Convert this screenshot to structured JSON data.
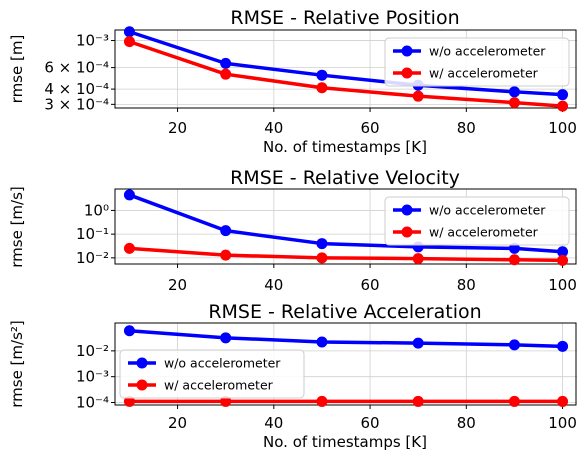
{
  "chart_data": [
    {
      "type": "line",
      "title": "RMSE - Relative Position",
      "xlabel": "No. of timestamps [K]",
      "ylabel": "rmse [m]",
      "yscale": "log",
      "xlim": [
        7,
        103
      ],
      "ylim": [
        0.00028,
        0.00122
      ],
      "grid": true,
      "legend_placement": "top-right",
      "x_ticks": [
        20,
        40,
        60,
        80,
        100
      ],
      "x_tick_labels": [
        "20",
        "40",
        "60",
        "80",
        "100"
      ],
      "y_ticks": [
        0.001,
        0.0006,
        0.0004,
        0.0003
      ],
      "y_tick_labels": [
        "10⁻³",
        "6 × 10⁻⁴",
        "4 × 10⁻⁴",
        "3 × 10⁻⁴"
      ],
      "x": [
        10,
        30,
        50,
        70,
        90,
        100
      ],
      "series": [
        {
          "name": "w/o accelerometer",
          "color": "#0000ff",
          "values": [
            0.00118,
            0.00065,
            0.00052,
            0.00043,
            0.00038,
            0.00036
          ]
        },
        {
          "name": "w/ accelerometer",
          "color": "#ff0000",
          "values": [
            0.00098,
            0.00053,
            0.00041,
            0.00035,
            0.00031,
            0.00029
          ]
        }
      ]
    },
    {
      "type": "line",
      "title": "RMSE - Relative Velocity",
      "xlabel": "",
      "ylabel": "rmse [m/s]",
      "yscale": "log",
      "xlim": [
        7,
        103
      ],
      "ylim": [
        0.0055,
        8
      ],
      "grid": true,
      "legend_placement": "top-right",
      "x_ticks": [
        20,
        40,
        60,
        80,
        100
      ],
      "x_tick_labels": [
        "20",
        "40",
        "60",
        "80",
        "100"
      ],
      "y_ticks": [
        1,
        0.1,
        0.01
      ],
      "y_tick_labels": [
        "10⁰",
        "10⁻¹",
        "10⁻²"
      ],
      "x": [
        10,
        30,
        50,
        70,
        90,
        100
      ],
      "series": [
        {
          "name": "w/o accelerometer",
          "color": "#0000ff",
          "values": [
            4.5,
            0.14,
            0.04,
            0.029,
            0.025,
            0.018
          ]
        },
        {
          "name": "w/ accelerometer",
          "color": "#ff0000",
          "values": [
            0.025,
            0.013,
            0.01,
            0.0093,
            0.0083,
            0.0078
          ]
        }
      ]
    },
    {
      "type": "line",
      "title": "RMSE - Relative Acceleration",
      "xlabel": "No. of timestamps [K]",
      "ylabel": "rmse [m/s²]",
      "yscale": "log",
      "xlim": [
        7,
        103
      ],
      "ylim": [
        8e-05,
        0.12
      ],
      "grid": true,
      "legend_placement": "center-left",
      "x_ticks": [
        20,
        40,
        60,
        80,
        100
      ],
      "x_tick_labels": [
        "20",
        "40",
        "60",
        "80",
        "100"
      ],
      "y_ticks": [
        0.01,
        0.001,
        0.0001
      ],
      "y_tick_labels": [
        "10⁻²",
        "10⁻³",
        "10⁻⁴"
      ],
      "x": [
        10,
        30,
        50,
        70,
        90,
        100
      ],
      "series": [
        {
          "name": "w/o accelerometer",
          "color": "#0000ff",
          "values": [
            0.06,
            0.032,
            0.022,
            0.02,
            0.017,
            0.015
          ]
        },
        {
          "name": "w/ accelerometer",
          "color": "#ff0000",
          "values": [
            0.00011,
            0.00011,
            0.00011,
            0.00011,
            0.00011,
            0.00011
          ]
        }
      ]
    }
  ]
}
